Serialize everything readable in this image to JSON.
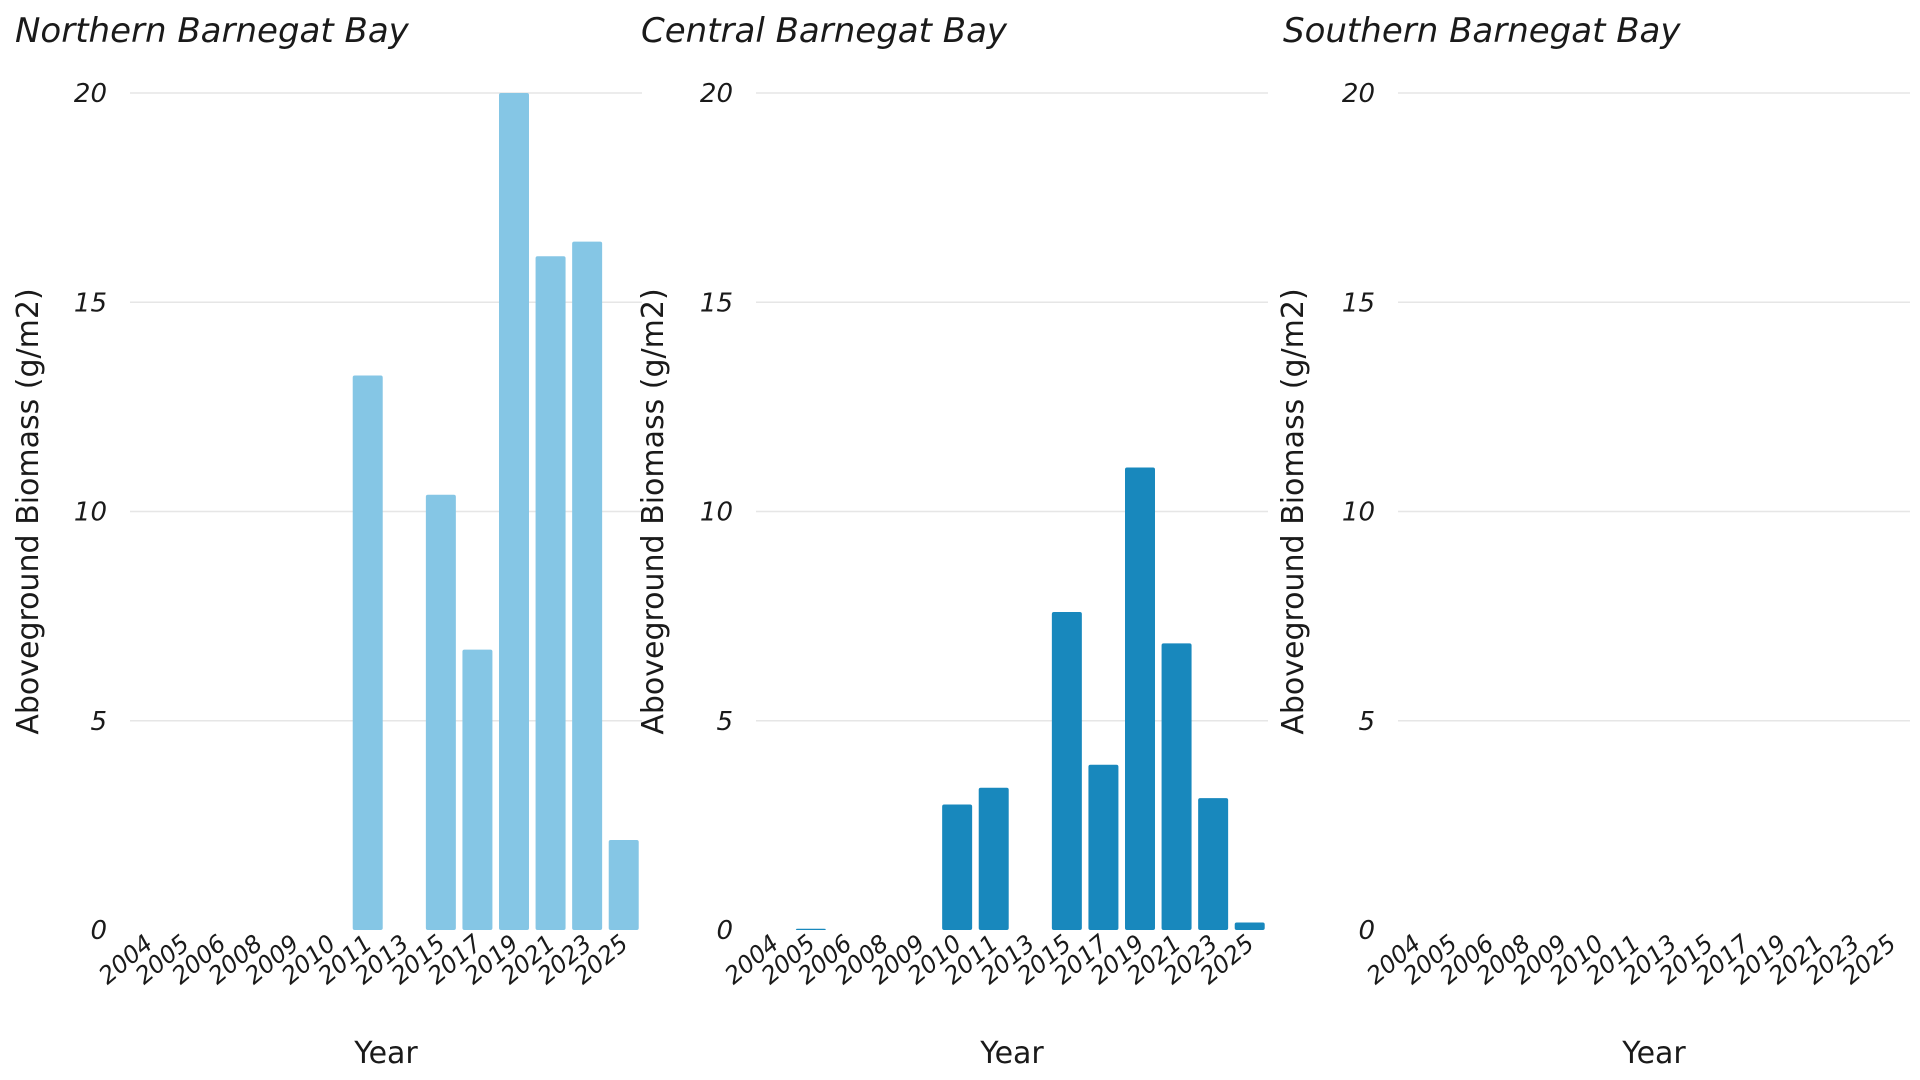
{
  "chart_data": [
    {
      "type": "bar",
      "title": "Northern Barnegat Bay",
      "xlabel": "Year",
      "ylabel": "Aboveground Biomass (g/m2)",
      "ylim": [
        0,
        20
      ],
      "yticks": [
        0,
        5,
        10,
        15,
        20
      ],
      "grid": true,
      "bar_color": "#85C6E5",
      "categories": [
        "2004",
        "2005",
        "2006",
        "2008",
        "2009",
        "2010",
        "2011",
        "2013",
        "2015",
        "2017",
        "2019",
        "2021",
        "2023",
        "2025"
      ],
      "values": [
        0,
        0,
        0,
        0,
        0,
        0,
        13.25,
        0,
        10.4,
        6.7,
        20.0,
        16.1,
        16.45,
        2.15
      ]
    },
    {
      "type": "bar",
      "title": "Central Barnegat Bay",
      "xlabel": "Year",
      "ylabel": "Aboveground Biomass (g/m2)",
      "ylim": [
        0,
        20
      ],
      "yticks": [
        0,
        5,
        10,
        15,
        20
      ],
      "grid": true,
      "bar_color": "#1888BD",
      "categories": [
        "2004",
        "2005",
        "2006",
        "2008",
        "2009",
        "2010",
        "2011",
        "2013",
        "2015",
        "2017",
        "2019",
        "2021",
        "2023",
        "2025"
      ],
      "values": [
        0,
        0.03,
        0,
        0,
        0,
        3.0,
        3.4,
        0,
        7.6,
        3.95,
        11.05,
        6.85,
        3.15,
        0.18
      ]
    },
    {
      "type": "bar",
      "title": "Southern Barnegat Bay",
      "xlabel": "Year",
      "ylabel": "Aboveground Biomass (g/m2)",
      "ylim": [
        0,
        20
      ],
      "yticks": [
        0,
        5,
        10,
        15,
        20
      ],
      "grid": true,
      "bar_color": "#1888BD",
      "categories": [
        "2004",
        "2005",
        "2006",
        "2008",
        "2009",
        "2010",
        "2011",
        "2013",
        "2015",
        "2017",
        "2019",
        "2021",
        "2023",
        "2025"
      ],
      "values": [
        0,
        0,
        0,
        0,
        0,
        0,
        0,
        0,
        0,
        0,
        0,
        0,
        0,
        0
      ]
    }
  ]
}
